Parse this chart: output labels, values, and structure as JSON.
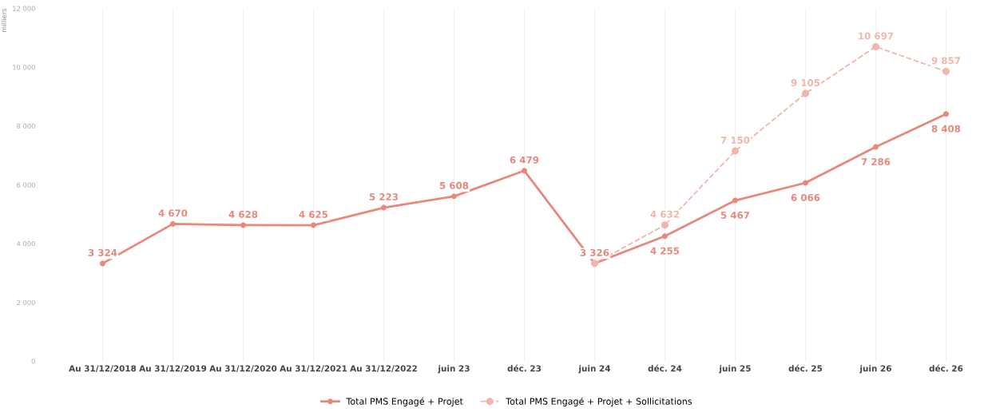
{
  "chart_data": {
    "type": "line",
    "ylabel": "milliers",
    "categories": [
      "Au 31/12/2018",
      "Au 31/12/2019",
      "Au 31/12/2020",
      "Au 31/12/2021",
      "Au 31/12/2022",
      "juin 23",
      "déc. 23",
      "juin 24",
      "déc. 24",
      "juin 25",
      "déc. 25",
      "juin 26",
      "déc. 26"
    ],
    "series": [
      {
        "name": "Total PMS Engagé + Projet",
        "color": "#e8887b",
        "line_style": "solid",
        "values": [
          3324,
          4670,
          4628,
          4625,
          5223,
          5608,
          6479,
          3326,
          4255,
          5467,
          6066,
          7286,
          8408
        ],
        "value_labels": [
          "3 324",
          "4 670",
          "4 628",
          "4 625",
          "5 223",
          "5 608",
          "6 479",
          "3 326",
          "4 255",
          "5 467",
          "6 066",
          "7 286",
          "8 408"
        ]
      },
      {
        "name": "Total PMS Engagé + Projet + Sollicitations",
        "color": "#f2b5a8",
        "line_style": "dashed",
        "values": [
          null,
          null,
          null,
          null,
          null,
          null,
          null,
          3326,
          4632,
          7150,
          9105,
          10697,
          9857
        ],
        "value_labels": [
          null,
          null,
          null,
          null,
          null,
          null,
          null,
          null,
          "4 632",
          "7 150",
          "9 105",
          "10 697",
          "9 857"
        ]
      }
    ],
    "ylim": [
      0,
      12000
    ],
    "yticks": [
      {
        "value": 0,
        "label": "0"
      },
      {
        "value": 2000,
        "label": "2 000"
      },
      {
        "value": 4000,
        "label": "4 000"
      },
      {
        "value": 6000,
        "label": "6 000"
      },
      {
        "value": 8000,
        "label": "8 000"
      },
      {
        "value": 10000,
        "label": "10 000"
      },
      {
        "value": 12000,
        "label": "12 000"
      }
    ],
    "grid": "x",
    "legend": "bottom",
    "marker": "circle"
  }
}
